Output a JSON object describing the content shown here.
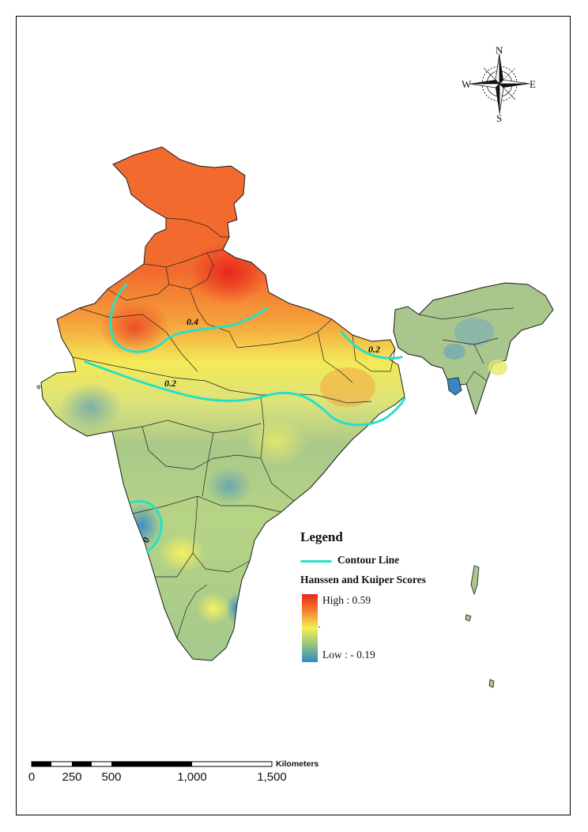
{
  "legend": {
    "title": "Legend",
    "contour_label": "Contour Line",
    "score_title": "Hanssen and Kuiper Scores",
    "high_label": "High : 0.59",
    "low_label": "Low : - 0.19",
    "ramp_colors": [
      "#e8261e",
      "#f5822d",
      "#f6f052",
      "#9fc77c",
      "#2d8cc8"
    ]
  },
  "contour_labels": [
    "0.4",
    "0.2",
    "0.2",
    "0"
  ],
  "contour_color": "#27e0c8",
  "compass": {
    "n": "N",
    "s": "S",
    "e": "E",
    "w": "W"
  },
  "scale": {
    "unit": "Kilometers",
    "ticks": [
      "0",
      "250",
      "500",
      "1,000",
      "1,500"
    ]
  }
}
